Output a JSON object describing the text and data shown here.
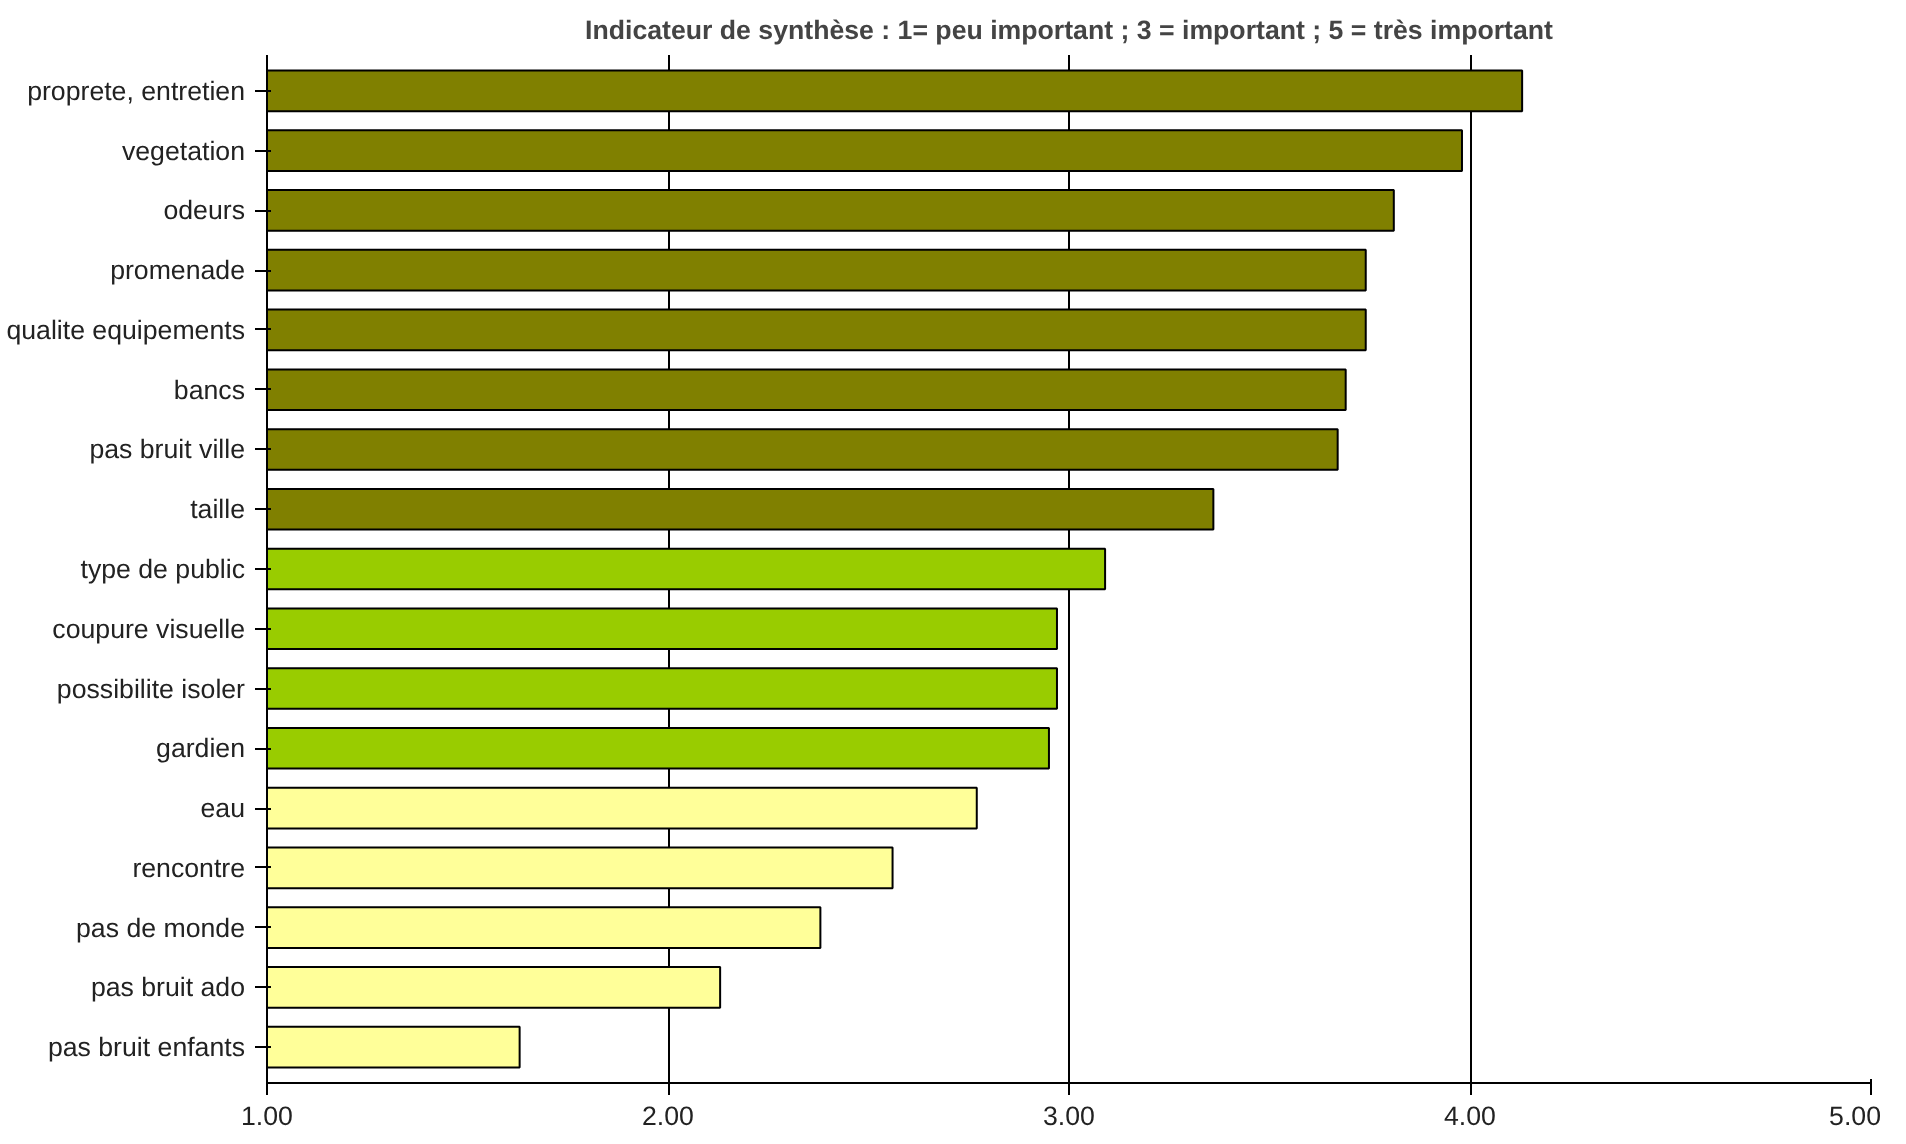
{
  "chart_data": {
    "type": "bar",
    "orientation": "horizontal",
    "title": "Indicateur de synthèse : 1= peu important ; 3 = important ; 5 = très important",
    "categories": [
      "proprete, entretien",
      "vegetation",
      "odeurs",
      "promenade",
      "qualite equipements",
      "bancs",
      "pas bruit ville",
      "taille",
      "type de public",
      "coupure visuelle",
      "possibilite isoler",
      "gardien",
      "eau",
      "rencontre",
      "pas de monde",
      "pas bruit ado",
      "pas bruit enfants"
    ],
    "values": [
      4.13,
      3.98,
      3.81,
      3.74,
      3.74,
      3.69,
      3.67,
      3.36,
      3.09,
      2.97,
      2.97,
      2.95,
      2.77,
      2.56,
      2.38,
      2.13,
      1.63
    ],
    "colors": [
      "#808000",
      "#808000",
      "#808000",
      "#808000",
      "#808000",
      "#808000",
      "#808000",
      "#808000",
      "#99cc00",
      "#99cc00",
      "#99cc00",
      "#99cc00",
      "#ffff99",
      "#ffff99",
      "#ffff99",
      "#ffff99",
      "#ffff99"
    ],
    "xlim": [
      1,
      5
    ],
    "xticks": [
      {
        "value": 1,
        "label": "1.00"
      },
      {
        "value": 2,
        "label": "2.00"
      },
      {
        "value": 3,
        "label": "3.00"
      },
      {
        "value": 4,
        "label": "4.00"
      },
      {
        "value": 5,
        "label": "5.00"
      }
    ],
    "grid": "x"
  }
}
